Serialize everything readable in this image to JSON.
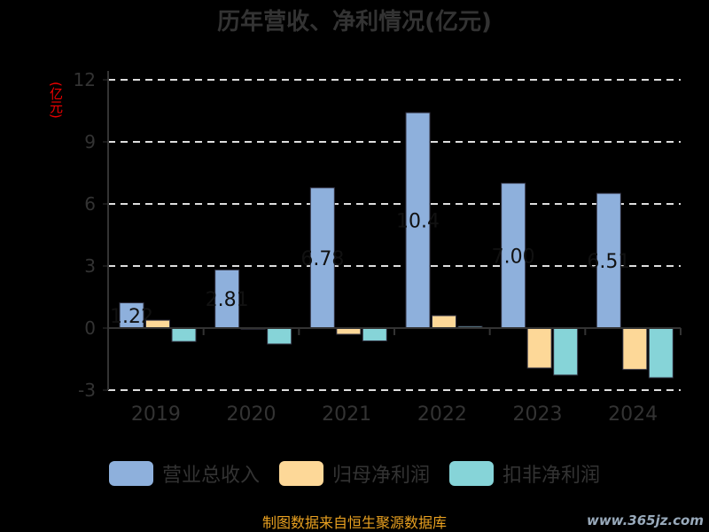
{
  "chart_data": {
    "type": "bar",
    "title": "历年营收、净利情况(亿元)",
    "ylabel": "(亿元)",
    "xlabel": "",
    "categories": [
      "2019",
      "2020",
      "2021",
      "2022",
      "2023",
      "2024"
    ],
    "ylim": [
      -3,
      12
    ],
    "yticks": [
      -3,
      0,
      3,
      6,
      9,
      12
    ],
    "grid": true,
    "legend_position": "bottom",
    "series": [
      {
        "name": "营业总收入",
        "color": "#8eb0dc",
        "values": [
          1.22,
          2.81,
          6.78,
          10.41,
          7.0,
          6.51
        ],
        "labels": [
          "1.22",
          "2.81",
          "6.78",
          "10.4",
          "7.00",
          "6.51"
        ]
      },
      {
        "name": "归母净利润",
        "color": "#fdd898",
        "values": [
          0.38,
          -0.05,
          -0.3,
          0.6,
          -1.93,
          -2.0
        ]
      },
      {
        "name": "扣非净利润",
        "color": "#86d4d8",
        "values": [
          -0.65,
          -0.77,
          -0.62,
          0.08,
          -2.27,
          -2.4
        ]
      }
    ]
  },
  "source": "制图数据来自恒生聚源数据库",
  "watermark": "www.365jz.com"
}
